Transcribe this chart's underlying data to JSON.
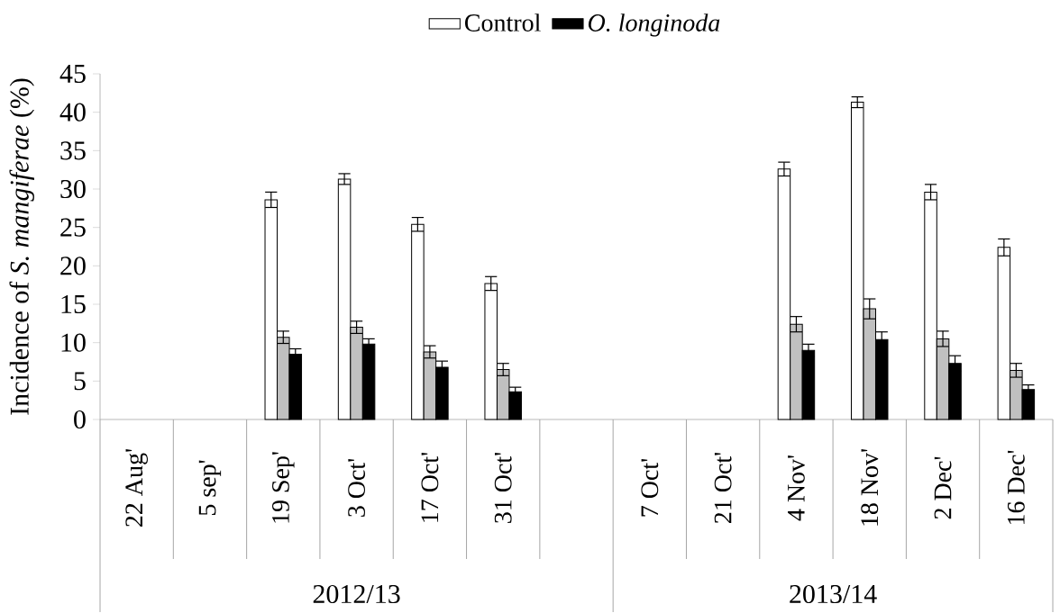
{
  "chart_data": {
    "type": "bar",
    "ylabel": "Incidence of *S. mangiferae* (%)",
    "categories": [
      "22 Aug'",
      "5 sep'",
      "19 Sep'",
      "3 Oct'",
      "17 Oct'",
      "31 Oct'",
      null,
      "7 Oct'",
      "21 Oct'",
      "4 Nov'",
      "18 Nov'",
      "2 Dec'",
      "16 Dec'"
    ],
    "series": [
      {
        "name": "Control",
        "color": "#ffffff",
        "values": [
          null,
          null,
          28.6,
          31.3,
          25.4,
          17.7,
          null,
          null,
          null,
          32.6,
          41.3,
          29.6,
          22.4
        ],
        "errors": [
          null,
          null,
          1.0,
          0.7,
          0.9,
          0.9,
          null,
          null,
          null,
          0.9,
          0.7,
          1.0,
          1.1
        ]
      },
      {
        "color": "#c0c0c0",
        "values": [
          null,
          null,
          10.7,
          12.0,
          8.8,
          6.5,
          null,
          null,
          null,
          12.4,
          14.4,
          10.5,
          6.4
        ],
        "errors": [
          null,
          null,
          0.8,
          0.8,
          0.8,
          0.8,
          null,
          null,
          null,
          1.0,
          1.3,
          1.0,
          0.9
        ]
      },
      {
        "name": "*O. longinoda*",
        "color": "#000000",
        "values": [
          null,
          null,
          8.5,
          9.8,
          6.8,
          3.6,
          null,
          null,
          null,
          9.0,
          10.4,
          7.3,
          3.9
        ],
        "errors": [
          null,
          null,
          0.7,
          0.7,
          0.8,
          0.6,
          null,
          null,
          null,
          0.8,
          1.0,
          1.0,
          0.6
        ]
      }
    ],
    "ylim": [
      0,
      45
    ],
    "yticks": [
      0,
      5,
      10,
      15,
      20,
      25,
      30,
      35,
      40,
      45
    ],
    "legend": "top",
    "annotations": [
      "2012/13",
      "2013/14"
    ]
  }
}
